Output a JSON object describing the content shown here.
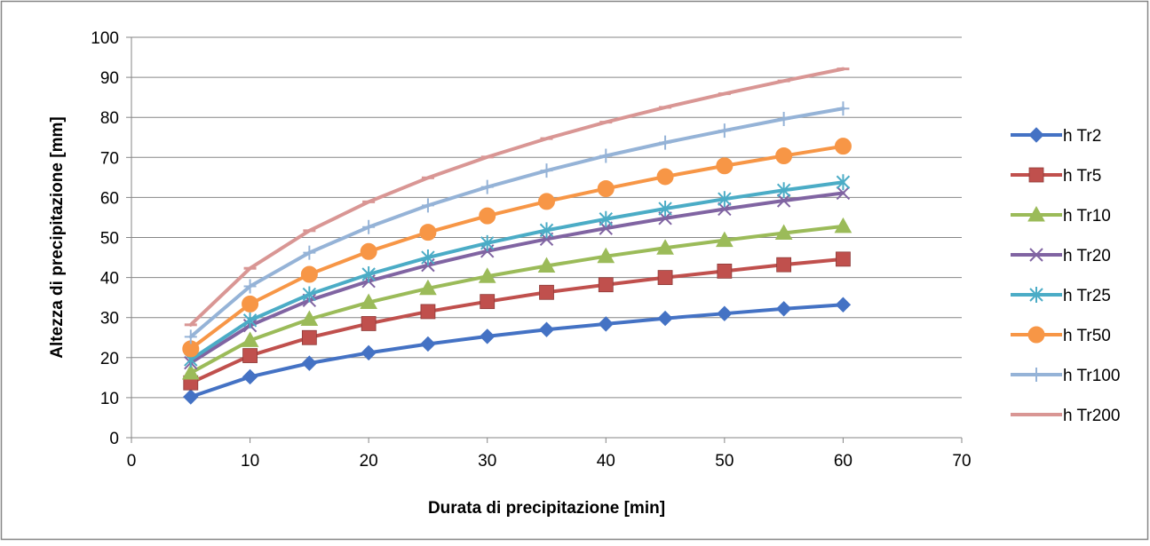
{
  "chart_data": {
    "type": "line",
    "xlabel": "Durata di precipitazione [min]",
    "ylabel": "Altezza di precipitazione [mm]",
    "xlim": [
      0,
      70
    ],
    "ylim": [
      0,
      100
    ],
    "x_ticks": [
      0,
      10,
      20,
      30,
      40,
      50,
      60,
      70
    ],
    "y_ticks": [
      0,
      10,
      20,
      30,
      40,
      50,
      60,
      70,
      80,
      90,
      100
    ],
    "grid": "horizontal major gridlines",
    "legend_position": "right",
    "x": [
      5,
      10,
      15,
      20,
      25,
      30,
      35,
      40,
      45,
      50,
      55,
      60
    ],
    "series": [
      {
        "name": "h Tr2",
        "color": "#4472C4",
        "marker": "diamond",
        "values": [
          10.2,
          15.2,
          18.6,
          21.2,
          23.4,
          25.3,
          27.0,
          28.4,
          29.8,
          31.0,
          32.2,
          33.2
        ]
      },
      {
        "name": "h Tr5",
        "color": "#C0504D",
        "marker": "square",
        "values": [
          13.7,
          20.5,
          25.0,
          28.5,
          31.5,
          34.0,
          36.3,
          38.2,
          40.0,
          41.6,
          43.2,
          44.6
        ]
      },
      {
        "name": "h Tr10",
        "color": "#9BBB59",
        "marker": "triangle",
        "values": [
          16.2,
          24.3,
          29.6,
          33.8,
          37.3,
          40.3,
          42.9,
          45.3,
          47.4,
          49.3,
          51.1,
          52.8
        ]
      },
      {
        "name": "h Tr20",
        "color": "#8064A2",
        "marker": "x",
        "values": [
          18.7,
          28.0,
          34.3,
          39.1,
          43.1,
          46.6,
          49.6,
          52.3,
          54.8,
          57.1,
          59.2,
          61.1
        ]
      },
      {
        "name": "h Tr25",
        "color": "#4BACC6",
        "marker": "star",
        "values": [
          19.5,
          29.3,
          35.8,
          40.8,
          45.0,
          48.6,
          51.8,
          54.6,
          57.2,
          59.6,
          61.8,
          63.8
        ]
      },
      {
        "name": "h Tr50",
        "color": "#F79646",
        "marker": "circle",
        "values": [
          22.2,
          33.4,
          40.8,
          46.5,
          51.3,
          55.4,
          59.0,
          62.2,
          65.2,
          67.9,
          70.4,
          72.8
        ]
      },
      {
        "name": "h Tr100",
        "color": "#95B3D7",
        "marker": "plus",
        "values": [
          25.2,
          37.8,
          46.2,
          52.6,
          58.0,
          62.6,
          66.7,
          70.4,
          73.7,
          76.7,
          79.6,
          82.2
        ]
      },
      {
        "name": "h Tr200",
        "color": "#D99694",
        "marker": "dash",
        "values": [
          28.2,
          42.3,
          51.7,
          58.9,
          64.9,
          70.1,
          74.7,
          78.8,
          82.5,
          85.9,
          89.1,
          92.1
        ]
      }
    ]
  }
}
